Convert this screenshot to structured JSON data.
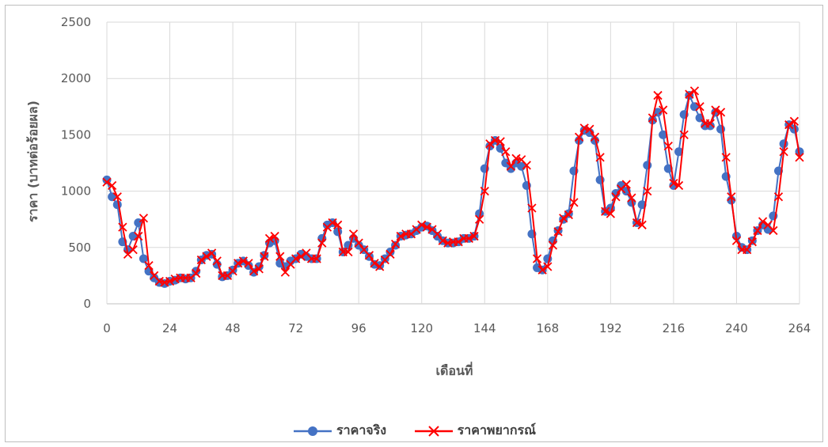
{
  "chart_data": {
    "type": "line",
    "xlabel": "เดือนที่",
    "ylabel": "ราคา (บาทต่อร้อยผล)",
    "xlim": [
      0,
      264
    ],
    "ylim": [
      0,
      2500
    ],
    "xticks": [
      0,
      24,
      48,
      72,
      96,
      120,
      144,
      168,
      192,
      216,
      240,
      264
    ],
    "yticks": [
      0,
      500,
      1000,
      1500,
      2000,
      2500
    ],
    "grid": true,
    "legend_position": "bottom",
    "series": [
      {
        "name": "ราคาจริง",
        "color": "#4472c4",
        "marker": "circle",
        "points": [
          [
            0,
            1100
          ],
          [
            2,
            950
          ],
          [
            4,
            880
          ],
          [
            6,
            550
          ],
          [
            8,
            480
          ],
          [
            10,
            600
          ],
          [
            12,
            720
          ],
          [
            14,
            400
          ],
          [
            16,
            290
          ],
          [
            18,
            230
          ],
          [
            20,
            190
          ],
          [
            22,
            180
          ],
          [
            24,
            200
          ],
          [
            26,
            210
          ],
          [
            28,
            230
          ],
          [
            30,
            220
          ],
          [
            32,
            230
          ],
          [
            34,
            290
          ],
          [
            36,
            390
          ],
          [
            38,
            430
          ],
          [
            40,
            440
          ],
          [
            42,
            350
          ],
          [
            44,
            240
          ],
          [
            46,
            250
          ],
          [
            48,
            300
          ],
          [
            50,
            360
          ],
          [
            52,
            380
          ],
          [
            54,
            340
          ],
          [
            56,
            280
          ],
          [
            58,
            330
          ],
          [
            60,
            430
          ],
          [
            62,
            540
          ],
          [
            64,
            560
          ],
          [
            66,
            360
          ],
          [
            68,
            330
          ],
          [
            70,
            380
          ],
          [
            72,
            400
          ],
          [
            74,
            440
          ],
          [
            76,
            420
          ],
          [
            78,
            400
          ],
          [
            80,
            400
          ],
          [
            82,
            580
          ],
          [
            84,
            700
          ],
          [
            86,
            720
          ],
          [
            88,
            640
          ],
          [
            90,
            460
          ],
          [
            92,
            520
          ],
          [
            94,
            580
          ],
          [
            96,
            520
          ],
          [
            98,
            480
          ],
          [
            100,
            420
          ],
          [
            102,
            350
          ],
          [
            104,
            340
          ],
          [
            106,
            400
          ],
          [
            108,
            460
          ],
          [
            110,
            520
          ],
          [
            112,
            600
          ],
          [
            114,
            610
          ],
          [
            116,
            620
          ],
          [
            118,
            650
          ],
          [
            120,
            680
          ],
          [
            122,
            690
          ],
          [
            124,
            650
          ],
          [
            126,
            600
          ],
          [
            128,
            560
          ],
          [
            130,
            540
          ],
          [
            132,
            540
          ],
          [
            134,
            550
          ],
          [
            136,
            580
          ],
          [
            138,
            580
          ],
          [
            140,
            600
          ],
          [
            142,
            800
          ],
          [
            144,
            1200
          ],
          [
            146,
            1400
          ],
          [
            148,
            1450
          ],
          [
            150,
            1380
          ],
          [
            152,
            1250
          ],
          [
            154,
            1200
          ],
          [
            156,
            1250
          ],
          [
            158,
            1220
          ],
          [
            160,
            1050
          ],
          [
            162,
            620
          ],
          [
            164,
            320
          ],
          [
            166,
            300
          ],
          [
            168,
            400
          ],
          [
            170,
            560
          ],
          [
            172,
            650
          ],
          [
            174,
            750
          ],
          [
            176,
            800
          ],
          [
            178,
            1180
          ],
          [
            180,
            1450
          ],
          [
            182,
            1540
          ],
          [
            184,
            1520
          ],
          [
            186,
            1450
          ],
          [
            188,
            1100
          ],
          [
            190,
            820
          ],
          [
            192,
            850
          ],
          [
            194,
            980
          ],
          [
            196,
            1050
          ],
          [
            198,
            1000
          ],
          [
            200,
            900
          ],
          [
            202,
            720
          ],
          [
            204,
            880
          ],
          [
            206,
            1230
          ],
          [
            208,
            1630
          ],
          [
            210,
            1700
          ],
          [
            212,
            1500
          ],
          [
            214,
            1200
          ],
          [
            216,
            1050
          ],
          [
            218,
            1350
          ],
          [
            220,
            1680
          ],
          [
            222,
            1850
          ],
          [
            224,
            1750
          ],
          [
            226,
            1650
          ],
          [
            228,
            1580
          ],
          [
            230,
            1580
          ],
          [
            232,
            1700
          ],
          [
            234,
            1550
          ],
          [
            236,
            1130
          ],
          [
            238,
            920
          ],
          [
            240,
            600
          ],
          [
            242,
            500
          ],
          [
            244,
            480
          ],
          [
            246,
            560
          ],
          [
            248,
            650
          ],
          [
            250,
            700
          ],
          [
            252,
            660
          ],
          [
            254,
            780
          ],
          [
            256,
            1180
          ],
          [
            258,
            1420
          ],
          [
            260,
            1590
          ],
          [
            262,
            1550
          ],
          [
            264,
            1350
          ]
        ]
      },
      {
        "name": "ราคาพยากรณ์",
        "color": "#ff0000",
        "marker": "x",
        "points": [
          [
            0,
            1080
          ],
          [
            2,
            1050
          ],
          [
            4,
            950
          ],
          [
            6,
            680
          ],
          [
            8,
            440
          ],
          [
            10,
            480
          ],
          [
            12,
            600
          ],
          [
            14,
            760
          ],
          [
            16,
            340
          ],
          [
            18,
            250
          ],
          [
            20,
            200
          ],
          [
            22,
            190
          ],
          [
            24,
            200
          ],
          [
            26,
            220
          ],
          [
            28,
            230
          ],
          [
            30,
            230
          ],
          [
            32,
            230
          ],
          [
            34,
            270
          ],
          [
            36,
            390
          ],
          [
            38,
            420
          ],
          [
            40,
            450
          ],
          [
            42,
            380
          ],
          [
            44,
            250
          ],
          [
            46,
            250
          ],
          [
            48,
            290
          ],
          [
            50,
            360
          ],
          [
            52,
            380
          ],
          [
            54,
            360
          ],
          [
            56,
            290
          ],
          [
            58,
            310
          ],
          [
            60,
            420
          ],
          [
            62,
            580
          ],
          [
            64,
            600
          ],
          [
            66,
            420
          ],
          [
            68,
            280
          ],
          [
            70,
            350
          ],
          [
            72,
            400
          ],
          [
            74,
            420
          ],
          [
            76,
            450
          ],
          [
            78,
            400
          ],
          [
            80,
            400
          ],
          [
            82,
            540
          ],
          [
            84,
            680
          ],
          [
            86,
            720
          ],
          [
            88,
            700
          ],
          [
            90,
            460
          ],
          [
            92,
            460
          ],
          [
            94,
            620
          ],
          [
            96,
            540
          ],
          [
            98,
            480
          ],
          [
            100,
            430
          ],
          [
            102,
            360
          ],
          [
            104,
            330
          ],
          [
            106,
            390
          ],
          [
            108,
            440
          ],
          [
            110,
            530
          ],
          [
            112,
            600
          ],
          [
            114,
            620
          ],
          [
            116,
            620
          ],
          [
            118,
            660
          ],
          [
            120,
            700
          ],
          [
            122,
            680
          ],
          [
            124,
            660
          ],
          [
            126,
            620
          ],
          [
            128,
            560
          ],
          [
            130,
            540
          ],
          [
            132,
            550
          ],
          [
            134,
            550
          ],
          [
            136,
            580
          ],
          [
            138,
            580
          ],
          [
            140,
            600
          ],
          [
            142,
            750
          ],
          [
            144,
            1000
          ],
          [
            146,
            1420
          ],
          [
            148,
            1450
          ],
          [
            150,
            1440
          ],
          [
            152,
            1350
          ],
          [
            154,
            1220
          ],
          [
            156,
            1290
          ],
          [
            158,
            1280
          ],
          [
            160,
            1230
          ],
          [
            162,
            850
          ],
          [
            164,
            400
          ],
          [
            166,
            300
          ],
          [
            168,
            330
          ],
          [
            170,
            520
          ],
          [
            172,
            640
          ],
          [
            174,
            760
          ],
          [
            176,
            790
          ],
          [
            178,
            900
          ],
          [
            180,
            1480
          ],
          [
            182,
            1560
          ],
          [
            184,
            1550
          ],
          [
            186,
            1480
          ],
          [
            188,
            1300
          ],
          [
            190,
            820
          ],
          [
            192,
            800
          ],
          [
            194,
            950
          ],
          [
            196,
            1020
          ],
          [
            198,
            1060
          ],
          [
            200,
            940
          ],
          [
            202,
            720
          ],
          [
            204,
            700
          ],
          [
            206,
            1000
          ],
          [
            208,
            1650
          ],
          [
            210,
            1850
          ],
          [
            212,
            1720
          ],
          [
            214,
            1400
          ],
          [
            216,
            1070
          ],
          [
            218,
            1050
          ],
          [
            220,
            1500
          ],
          [
            222,
            1860
          ],
          [
            224,
            1890
          ],
          [
            226,
            1750
          ],
          [
            228,
            1600
          ],
          [
            230,
            1600
          ],
          [
            232,
            1720
          ],
          [
            234,
            1700
          ],
          [
            236,
            1300
          ],
          [
            238,
            950
          ],
          [
            240,
            560
          ],
          [
            242,
            480
          ],
          [
            244,
            480
          ],
          [
            246,
            550
          ],
          [
            248,
            650
          ],
          [
            250,
            730
          ],
          [
            252,
            700
          ],
          [
            254,
            650
          ],
          [
            256,
            950
          ],
          [
            258,
            1350
          ],
          [
            260,
            1590
          ],
          [
            262,
            1620
          ],
          [
            264,
            1300
          ]
        ]
      }
    ]
  }
}
